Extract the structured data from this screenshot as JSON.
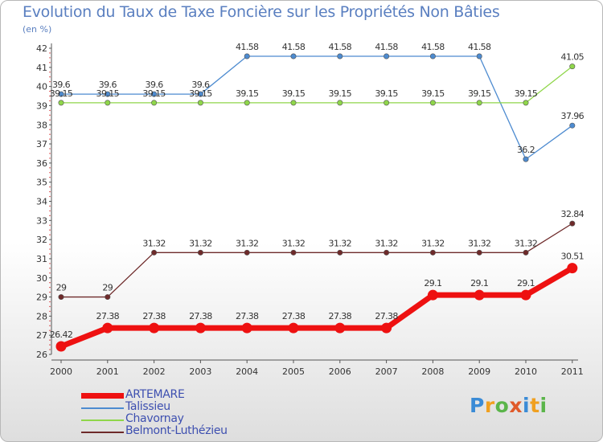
{
  "header": {
    "title": "Evolution du Taux de Taxe Foncière sur les Propriétés Non Bâties",
    "unit": "(en %)"
  },
  "logo": {
    "text": "Proxiti",
    "colors": [
      "#3a8bd6",
      "#f0a020",
      "#5ab54a",
      "#e05a2a",
      "#3a8bd6",
      "#f0a020",
      "#5ab54a"
    ]
  },
  "chart_data": {
    "type": "line",
    "title": "Evolution du Taux de Taxe Foncière sur les Propriétés Non Bâties",
    "ylabel": "(en %)",
    "xlabel": "",
    "categories": [
      "2000",
      "2001",
      "2002",
      "2003",
      "2004",
      "2005",
      "2006",
      "2007",
      "2008",
      "2009",
      "2010",
      "2011"
    ],
    "ylim": [
      26,
      42
    ],
    "yticks": [
      26,
      27,
      28,
      29,
      30,
      31,
      32,
      33,
      34,
      35,
      36,
      37,
      38,
      39,
      40,
      41,
      42
    ],
    "grid": false,
    "legend_position": "bottom-left",
    "series": [
      {
        "name": "ARTEMARE",
        "color": "#ee1111",
        "emphasis": "thick",
        "values": [
          26.42,
          27.38,
          27.38,
          27.38,
          27.38,
          27.38,
          27.38,
          27.38,
          29.1,
          29.1,
          29.1,
          30.51
        ],
        "labels": [
          "26.42",
          "27.38",
          "27.38",
          "27.38",
          "27.38",
          "27.38",
          "27.38",
          "27.38",
          "29.1",
          "29.1",
          "29.1",
          "30.51"
        ]
      },
      {
        "name": "Talissieu",
        "color": "#4d8bd0",
        "emphasis": "normal",
        "values": [
          39.6,
          39.6,
          39.6,
          39.6,
          41.58,
          41.58,
          41.58,
          41.58,
          41.58,
          41.58,
          36.2,
          37.96
        ],
        "labels": [
          "39.6",
          "39.6",
          "39.6",
          "39.6",
          "41.58",
          "41.58",
          "41.58",
          "41.58",
          "41.58",
          "41.58",
          "36.2",
          "37.96"
        ]
      },
      {
        "name": "Chavornay",
        "color": "#8fd64a",
        "emphasis": "normal",
        "values": [
          39.15,
          39.15,
          39.15,
          39.15,
          39.15,
          39.15,
          39.15,
          39.15,
          39.15,
          39.15,
          39.15,
          41.05
        ],
        "labels": [
          "39.15",
          "39.15",
          "39.15",
          "39.15",
          "39.15",
          "39.15",
          "39.15",
          "39.15",
          "39.15",
          "39.15",
          "39.15",
          "41.05"
        ]
      },
      {
        "name": "Belmont-Luthézieu",
        "color": "#6e2a2a",
        "emphasis": "normal",
        "values": [
          29,
          29,
          31.32,
          31.32,
          31.32,
          31.32,
          31.32,
          31.32,
          31.32,
          31.32,
          31.32,
          32.84
        ],
        "labels": [
          "29",
          "29",
          "31.32",
          "31.32",
          "31.32",
          "31.32",
          "31.32",
          "31.32",
          "31.32",
          "31.32",
          "31.32",
          "32.84"
        ]
      }
    ]
  }
}
